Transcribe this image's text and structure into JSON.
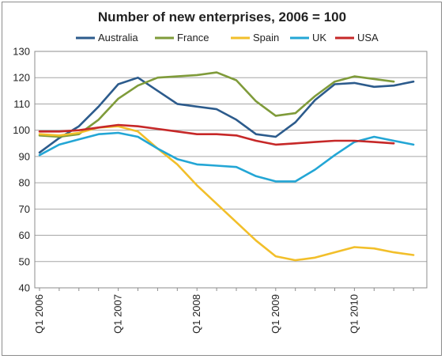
{
  "chart_data": {
    "type": "line",
    "title": "Number of new enterprises, 2006 = 100",
    "xlabel": "",
    "ylabel": "",
    "ylim": [
      40,
      130
    ],
    "yticks": [
      40,
      50,
      60,
      70,
      80,
      90,
      100,
      110,
      120,
      130
    ],
    "grid": true,
    "legend": "top",
    "x": [
      "Q1 2006",
      "Q2 2006",
      "Q3 2006",
      "Q4 2006",
      "Q1 2007",
      "Q2 2007",
      "Q3 2007",
      "Q4 2007",
      "Q1 2008",
      "Q2 2008",
      "Q3 2008",
      "Q4 2008",
      "Q1 2009",
      "Q2 2009",
      "Q3 2009",
      "Q4 2009",
      "Q1 2010",
      "Q2 2010",
      "Q3 2010",
      "Q4 2010"
    ],
    "x_tick_labels": [
      "Q1 2006",
      "Q1 2007",
      "Q1 2008",
      "Q1 2009",
      "Q1 2010"
    ],
    "series": [
      {
        "name": "Australia",
        "color": "#2c5b8c",
        "values": [
          91.5,
          97,
          101.5,
          109,
          117.5,
          120,
          115,
          110,
          109,
          108,
          104,
          98.5,
          97.5,
          103,
          111.5,
          117.5,
          118,
          116.5,
          117,
          118.5
        ]
      },
      {
        "name": "France",
        "color": "#7f9b3a",
        "values": [
          98,
          97.5,
          98.5,
          104,
          112,
          117,
          120,
          120.5,
          121,
          122,
          119,
          111,
          105.5,
          106.5,
          113,
          118.5,
          120.5,
          119.5,
          118.5,
          null
        ]
      },
      {
        "name": "Spain",
        "color": "#f2bf2a",
        "values": [
          98.5,
          98,
          99,
          101,
          101.5,
          99.5,
          93,
          87,
          79,
          72,
          65,
          58,
          52,
          50.5,
          51.5,
          53.5,
          55.5,
          55,
          53.5,
          52.5
        ]
      },
      {
        "name": "UK",
        "color": "#23a6d5",
        "values": [
          90.5,
          94.5,
          96.5,
          98.5,
          99,
          97.5,
          93,
          89,
          87,
          86.5,
          86,
          82.5,
          80.5,
          80.5,
          85,
          90.5,
          95.5,
          97.5,
          96,
          94.5
        ]
      },
      {
        "name": "USA",
        "color": "#c62828",
        "values": [
          99.5,
          99.5,
          100,
          101,
          102,
          101.5,
          100.5,
          99.5,
          98.5,
          98.5,
          98,
          96,
          94.5,
          95,
          95.5,
          96,
          96,
          95.5,
          95,
          null
        ]
      }
    ]
  }
}
